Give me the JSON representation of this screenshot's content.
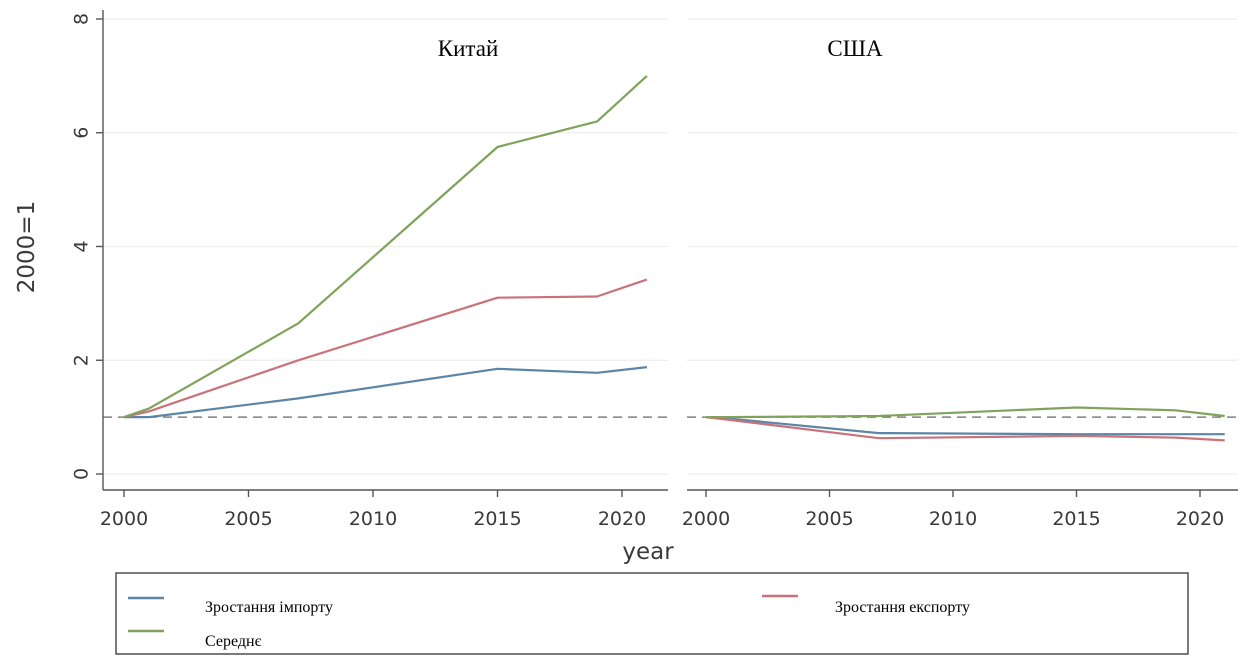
{
  "chart_data": {
    "type": "line",
    "ylabel": "2000=1",
    "xlabel": "year",
    "ylim": [
      0,
      8
    ],
    "xlim": [
      2000,
      2021
    ],
    "y_ticks": [
      "0",
      "2",
      "4",
      "6",
      "8"
    ],
    "x_ticks": [
      "2000",
      "2005",
      "2010",
      "2015",
      "2020"
    ],
    "reference_line": 1,
    "grid": "horizontal",
    "legend_position": "bottom",
    "colors": {
      "import": "#5b86a8",
      "export": "#c9727a",
      "average": "#7fa35a",
      "reference": "#808080"
    },
    "panels": [
      {
        "title": "Китай",
        "series": [
          {
            "name": "Зростання імпорту",
            "x": [
              2000,
              2001,
              2007,
              2015,
              2019,
              2021
            ],
            "y": [
              1.0,
              1.0,
              1.33,
              1.85,
              1.78,
              1.88
            ]
          },
          {
            "name": "Зростання експорту",
            "x": [
              2000,
              2001,
              2007,
              2015,
              2019,
              2021
            ],
            "y": [
              1.0,
              1.1,
              2.0,
              3.1,
              3.12,
              3.42
            ]
          },
          {
            "name": "Середнє",
            "x": [
              2000,
              2001,
              2007,
              2015,
              2019,
              2021
            ],
            "y": [
              1.0,
              1.15,
              2.65,
              5.75,
              6.2,
              7.0
            ]
          }
        ]
      },
      {
        "title": "США",
        "series": [
          {
            "name": "Зростання імпорту",
            "x": [
              2000,
              2001,
              2007,
              2015,
              2019,
              2021
            ],
            "y": [
              1.0,
              0.97,
              0.72,
              0.7,
              0.7,
              0.7
            ]
          },
          {
            "name": "Зростання експорту",
            "x": [
              2000,
              2001,
              2007,
              2015,
              2019,
              2021
            ],
            "y": [
              1.0,
              0.95,
              0.63,
              0.67,
              0.64,
              0.59
            ]
          },
          {
            "name": "Середнє",
            "x": [
              2000,
              2001,
              2007,
              2015,
              2019,
              2021
            ],
            "y": [
              1.0,
              1.0,
              1.02,
              1.17,
              1.12,
              1.02
            ]
          }
        ]
      }
    ]
  },
  "legend": {
    "items": [
      {
        "key": "import",
        "label": "Зростання імпорту"
      },
      {
        "key": "export",
        "label": "Зростання експорту"
      },
      {
        "key": "average",
        "label": "Середнє"
      }
    ]
  }
}
